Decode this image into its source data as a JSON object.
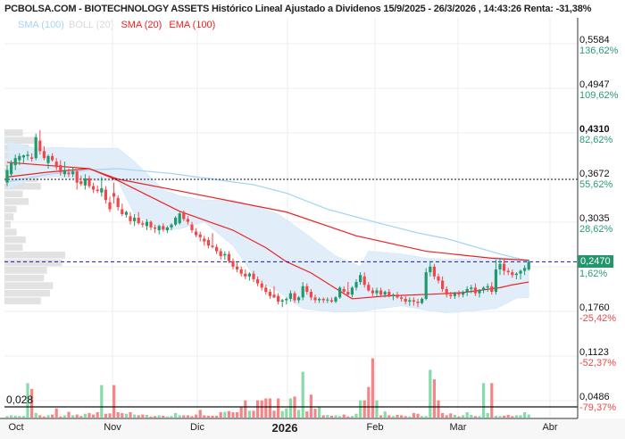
{
  "title": "PCBOLSA.COM - BIOTECHNOLOGY ASSETS Histórico Lineal Ajustado a Dividenos 15/9/2025 - 26/3/2026 , 14:43:26 Renta: -31,38%",
  "legend": [
    {
      "label": "SMA (100)",
      "color": "#9fd3f5"
    },
    {
      "label": "BOLL (20)",
      "color": "#d8d8d8"
    },
    {
      "label": "SMA (20)",
      "color": "#ee2020"
    },
    {
      "label": "EMA (100)",
      "color": "#ee2020"
    }
  ],
  "colors": {
    "up": "#1f9a6c",
    "down": "#f04848",
    "vol_up": "#85dcaa",
    "vol_down": "#f78585",
    "band": "#dcecfa",
    "sma100": "#a6d6f6",
    "red_line": "#ec2222",
    "pct_up": "#2a9d72",
    "pct_down": "#f04848"
  },
  "chart_data": {
    "type": "candlestick",
    "ylim": [
      0.0486,
      0.5584
    ],
    "y_ticks": [
      {
        "price": "0,5584",
        "pct": "136,62%",
        "value": 0.5584,
        "dir": "up"
      },
      {
        "price": "0,4947",
        "pct": "109,62%",
        "value": 0.4947,
        "dir": "up"
      },
      {
        "price": "0,4310",
        "pct": "82,62%",
        "value": 0.431,
        "dir": "up"
      },
      {
        "price": "0,3672",
        "pct": "55,62%",
        "value": 0.3672,
        "dir": "up"
      },
      {
        "price": "0,3035",
        "pct": "28,62%",
        "value": 0.3035,
        "dir": "up"
      },
      {
        "price": "",
        "pct": "1,62%",
        "value": 0.2398,
        "dir": "up"
      },
      {
        "price": "0,1760",
        "pct": "-25,42%",
        "value": 0.176,
        "dir": "down"
      },
      {
        "price": "0,1123",
        "pct": "-52,37%",
        "value": 0.1123,
        "dir": "down"
      },
      {
        "price": "0,0486",
        "pct": "-79,37%",
        "value": 0.0486,
        "dir": "down"
      }
    ],
    "last_price": {
      "label": "0,2470",
      "value": 0.247
    },
    "reference_line": 0.3647,
    "x_labels": [
      "Oct",
      "Nov",
      "Dic",
      "2026",
      "Feb",
      "Mar",
      "Abr"
    ],
    "volume_line": {
      "label": "0,028",
      "value": 0.028
    },
    "candles": [
      [
        0.36,
        0.385,
        0.355,
        0.378
      ],
      [
        0.372,
        0.392,
        0.368,
        0.388
      ],
      [
        0.385,
        0.4,
        0.378,
        0.395
      ],
      [
        0.392,
        0.402,
        0.385,
        0.398
      ],
      [
        0.396,
        0.4,
        0.388,
        0.399
      ],
      [
        0.398,
        0.405,
        0.392,
        0.4
      ],
      [
        0.396,
        0.402,
        0.39,
        0.394
      ],
      [
        0.395,
        0.43,
        0.392,
        0.425
      ],
      [
        0.42,
        0.435,
        0.4,
        0.405
      ],
      [
        0.405,
        0.412,
        0.392,
        0.395
      ],
      [
        0.388,
        0.4,
        0.38,
        0.398
      ],
      [
        0.398,
        0.402,
        0.39,
        0.392
      ],
      [
        0.39,
        0.395,
        0.378,
        0.382
      ],
      [
        0.385,
        0.392,
        0.37,
        0.375
      ],
      [
        0.372,
        0.39,
        0.368,
        0.378
      ],
      [
        0.374,
        0.38,
        0.368,
        0.372
      ],
      [
        0.372,
        0.382,
        0.368,
        0.376
      ],
      [
        0.376,
        0.378,
        0.35,
        0.36
      ],
      [
        0.362,
        0.37,
        0.355,
        0.358
      ],
      [
        0.356,
        0.372,
        0.35,
        0.366
      ],
      [
        0.366,
        0.37,
        0.352,
        0.355
      ],
      [
        0.355,
        0.36,
        0.345,
        0.35
      ],
      [
        0.35,
        0.356,
        0.345,
        0.348
      ],
      [
        0.346,
        0.368,
        0.34,
        0.352
      ],
      [
        0.35,
        0.355,
        0.33,
        0.335
      ],
      [
        0.332,
        0.34,
        0.318,
        0.322
      ],
      [
        0.345,
        0.36,
        0.33,
        0.34
      ],
      [
        0.338,
        0.342,
        0.32,
        0.325
      ],
      [
        0.322,
        0.33,
        0.312,
        0.315
      ],
      [
        0.314,
        0.32,
        0.31,
        0.318
      ],
      [
        0.312,
        0.318,
        0.3,
        0.305
      ],
      [
        0.305,
        0.315,
        0.298,
        0.31
      ],
      [
        0.31,
        0.318,
        0.3,
        0.302
      ],
      [
        0.302,
        0.306,
        0.296,
        0.3
      ],
      [
        0.298,
        0.308,
        0.292,
        0.304
      ],
      [
        0.304,
        0.306,
        0.292,
        0.296
      ],
      [
        0.296,
        0.3,
        0.288,
        0.294
      ],
      [
        0.292,
        0.3,
        0.286,
        0.298
      ],
      [
        0.298,
        0.302,
        0.29,
        0.293
      ],
      [
        0.292,
        0.298,
        0.288,
        0.296
      ],
      [
        0.296,
        0.302,
        0.292,
        0.3
      ],
      [
        0.3,
        0.312,
        0.298,
        0.31
      ],
      [
        0.302,
        0.318,
        0.3,
        0.316
      ],
      [
        0.318,
        0.32,
        0.305,
        0.308
      ],
      [
        0.308,
        0.312,
        0.3,
        0.304
      ],
      [
        0.3,
        0.304,
        0.288,
        0.292
      ],
      [
        0.29,
        0.295,
        0.282,
        0.285
      ],
      [
        0.286,
        0.29,
        0.276,
        0.282
      ],
      [
        0.28,
        0.284,
        0.27,
        0.276
      ],
      [
        0.278,
        0.282,
        0.266,
        0.27
      ],
      [
        0.27,
        0.288,
        0.266,
        0.268
      ],
      [
        0.268,
        0.272,
        0.258,
        0.262
      ],
      [
        0.262,
        0.266,
        0.25,
        0.255
      ],
      [
        0.256,
        0.262,
        0.25,
        0.258
      ],
      [
        0.258,
        0.262,
        0.245,
        0.248
      ],
      [
        0.248,
        0.252,
        0.236,
        0.24
      ],
      [
        0.24,
        0.246,
        0.232,
        0.236
      ],
      [
        0.236,
        0.24,
        0.226,
        0.23
      ],
      [
        0.23,
        0.236,
        0.222,
        0.226
      ],
      [
        0.226,
        0.232,
        0.22,
        0.23
      ],
      [
        0.23,
        0.234,
        0.218,
        0.222
      ],
      [
        0.222,
        0.226,
        0.212,
        0.216
      ],
      [
        0.216,
        0.22,
        0.206,
        0.21
      ],
      [
        0.21,
        0.214,
        0.2,
        0.204
      ],
      [
        0.204,
        0.208,
        0.194,
        0.198
      ],
      [
        0.2,
        0.212,
        0.195,
        0.196
      ],
      [
        0.198,
        0.202,
        0.186,
        0.19
      ],
      [
        0.19,
        0.194,
        0.182,
        0.192
      ],
      [
        0.192,
        0.196,
        0.186,
        0.194
      ],
      [
        0.194,
        0.206,
        0.19,
        0.202
      ],
      [
        0.202,
        0.205,
        0.188,
        0.192
      ],
      [
        0.192,
        0.198,
        0.188,
        0.196
      ],
      [
        0.196,
        0.218,
        0.192,
        0.212
      ],
      [
        0.212,
        0.216,
        0.2,
        0.204
      ],
      [
        0.204,
        0.208,
        0.192,
        0.196
      ],
      [
        0.196,
        0.2,
        0.188,
        0.192
      ],
      [
        0.192,
        0.196,
        0.188,
        0.194
      ],
      [
        0.194,
        0.196,
        0.188,
        0.192
      ],
      [
        0.192,
        0.196,
        0.188,
        0.193
      ],
      [
        0.192,
        0.196,
        0.188,
        0.19
      ],
      [
        0.19,
        0.198,
        0.188,
        0.196
      ],
      [
        0.196,
        0.212,
        0.194,
        0.21
      ],
      [
        0.208,
        0.212,
        0.2,
        0.204
      ],
      [
        0.204,
        0.218,
        0.198,
        0.2
      ],
      [
        0.2,
        0.212,
        0.196,
        0.21
      ],
      [
        0.21,
        0.222,
        0.206,
        0.218
      ],
      [
        0.218,
        0.232,
        0.214,
        0.228
      ],
      [
        0.226,
        0.232,
        0.21,
        0.214
      ],
      [
        0.214,
        0.218,
        0.204,
        0.206
      ],
      [
        0.206,
        0.21,
        0.198,
        0.202
      ],
      [
        0.202,
        0.21,
        0.198,
        0.206
      ],
      [
        0.206,
        0.21,
        0.198,
        0.2
      ],
      [
        0.2,
        0.206,
        0.196,
        0.204
      ],
      [
        0.204,
        0.208,
        0.196,
        0.198
      ],
      [
        0.198,
        0.202,
        0.192,
        0.2
      ],
      [
        0.2,
        0.204,
        0.194,
        0.196
      ],
      [
        0.196,
        0.2,
        0.19,
        0.194
      ],
      [
        0.194,
        0.198,
        0.186,
        0.19
      ],
      [
        0.19,
        0.196,
        0.184,
        0.192
      ],
      [
        0.192,
        0.196,
        0.184,
        0.19
      ],
      [
        0.19,
        0.194,
        0.182,
        0.188
      ],
      [
        0.188,
        0.196,
        0.186,
        0.194
      ],
      [
        0.194,
        0.238,
        0.192,
        0.232
      ],
      [
        0.232,
        0.248,
        0.226,
        0.24
      ],
      [
        0.24,
        0.244,
        0.222,
        0.226
      ],
      [
        0.226,
        0.23,
        0.216,
        0.22
      ],
      [
        0.22,
        0.226,
        0.204,
        0.208
      ],
      [
        0.208,
        0.212,
        0.196,
        0.2
      ],
      [
        0.2,
        0.204,
        0.194,
        0.198
      ],
      [
        0.198,
        0.204,
        0.194,
        0.202
      ],
      [
        0.202,
        0.206,
        0.196,
        0.2
      ],
      [
        0.2,
        0.206,
        0.196,
        0.204
      ],
      [
        0.204,
        0.212,
        0.198,
        0.208
      ],
      [
        0.208,
        0.214,
        0.202,
        0.21
      ],
      [
        0.21,
        0.216,
        0.198,
        0.202
      ],
      [
        0.202,
        0.208,
        0.196,
        0.206
      ],
      [
        0.206,
        0.212,
        0.202,
        0.21
      ],
      [
        0.21,
        0.216,
        0.204,
        0.212
      ],
      [
        0.212,
        0.218,
        0.2,
        0.204
      ],
      [
        0.204,
        0.25,
        0.2,
        0.236
      ],
      [
        0.236,
        0.252,
        0.228,
        0.244
      ],
      [
        0.244,
        0.252,
        0.228,
        0.234
      ],
      [
        0.234,
        0.238,
        0.228,
        0.232
      ],
      [
        0.232,
        0.236,
        0.224,
        0.228
      ],
      [
        0.228,
        0.232,
        0.222,
        0.23
      ],
      [
        0.23,
        0.236,
        0.222,
        0.234
      ],
      [
        0.234,
        0.242,
        0.228,
        0.238
      ],
      [
        0.236,
        0.25,
        0.234,
        0.247
      ]
    ],
    "volume": [
      0.004,
      0.006,
      0.005,
      0.004,
      0.004,
      0.09,
      0.075,
      0.012,
      0.006,
      0.003,
      0.006,
      0.008,
      0.024,
      0.003,
      0.006,
      0.015,
      0.006,
      0.008,
      0.004,
      0.01,
      0.012,
      0.008,
      0.014,
      0.085,
      0.01,
      0.011,
      0.085,
      0.014,
      0.012,
      0.01,
      0.014,
      0.008,
      0.006,
      0.008,
      0.007,
      0.003,
      0.004,
      0.006,
      0.005,
      0.003,
      0.004,
      0.012,
      0.006,
      0.006,
      0.006,
      0.004,
      0.008,
      0.02,
      0.006,
      0.005,
      0.005,
      0.005,
      0.014,
      0.015,
      0.017,
      0.014,
      0.014,
      0.027,
      0.045,
      0.018,
      0.018,
      0.045,
      0.045,
      0.05,
      0.05,
      0.018,
      0.05,
      0.017,
      0.024,
      0.05,
      0.055,
      0.02,
      0.12,
      0.016,
      0.06,
      0.023,
      0.028,
      0.006,
      0.007,
      0.005,
      0.006,
      0.004,
      0.008,
      0.003,
      0.004,
      0.01,
      0.045,
      0.045,
      0.08,
      0.155,
      0.045,
      0.006,
      0.016,
      0.006,
      0.004,
      0.007,
      0.006,
      0.004,
      0.003,
      0.012,
      0.01,
      0.004,
      0.004,
      0.125,
      0.1,
      0.045,
      0.012,
      0.006,
      0.011,
      0.007,
      0.003,
      0.006,
      0.014,
      0.007,
      0.004,
      0.004,
      0.09,
      0.012,
      0.09,
      0.005,
      0.004,
      0.005,
      0.007,
      0.004,
      0.006,
      0.006,
      0.014,
      0.008
    ],
    "sma100": [
      [
        0,
        0.361
      ],
      [
        10,
        0.372
      ],
      [
        20,
        0.378
      ],
      [
        27,
        0.38
      ],
      [
        40,
        0.373
      ],
      [
        60,
        0.357
      ],
      [
        68,
        0.345
      ],
      [
        78,
        0.322
      ],
      [
        90,
        0.303
      ],
      [
        100,
        0.288
      ],
      [
        107,
        0.28
      ],
      [
        120,
        0.258
      ],
      [
        127,
        0.248
      ]
    ],
    "ema100": [
      [
        0,
        0.368
      ],
      [
        10,
        0.375
      ],
      [
        20,
        0.38
      ],
      [
        27,
        0.365
      ],
      [
        42,
        0.348
      ],
      [
        68,
        0.318
      ],
      [
        85,
        0.284
      ],
      [
        102,
        0.262
      ],
      [
        118,
        0.252
      ],
      [
        127,
        0.249
      ]
    ],
    "sma20": [
      [
        0,
        0.389
      ],
      [
        11,
        0.384
      ],
      [
        20,
        0.38
      ],
      [
        27,
        0.363
      ],
      [
        42,
        0.319
      ],
      [
        55,
        0.292
      ],
      [
        63,
        0.267
      ],
      [
        68,
        0.247
      ],
      [
        74,
        0.231
      ],
      [
        84,
        0.194
      ],
      [
        92,
        0.198
      ],
      [
        105,
        0.201
      ],
      [
        111,
        0.203
      ],
      [
        120,
        0.21
      ],
      [
        123,
        0.214
      ],
      [
        127,
        0.218
      ]
    ],
    "boll": [
      [
        0,
        0.42,
        0.35
      ],
      [
        7,
        0.409,
        0.367
      ],
      [
        12,
        0.41,
        0.369
      ],
      [
        20,
        0.409,
        0.363
      ],
      [
        27,
        0.409,
        0.362
      ],
      [
        31,
        0.39,
        0.315
      ],
      [
        38,
        0.35,
        0.292
      ],
      [
        42,
        0.341,
        0.294
      ],
      [
        48,
        0.335,
        0.304
      ],
      [
        55,
        0.335,
        0.27
      ],
      [
        61,
        0.325,
        0.22
      ],
      [
        66,
        0.315,
        0.205
      ],
      [
        72,
        0.29,
        0.18
      ],
      [
        80,
        0.255,
        0.175
      ],
      [
        86,
        0.24,
        0.176
      ],
      [
        88,
        0.262,
        0.178
      ],
      [
        96,
        0.258,
        0.184
      ],
      [
        102,
        0.252,
        0.178
      ],
      [
        107,
        0.25,
        0.174
      ],
      [
        119,
        0.253,
        0.18
      ],
      [
        124,
        0.252,
        0.195
      ],
      [
        127,
        0.25,
        0.196
      ]
    ],
    "volume_profile": [
      0.3,
      0.5,
      0.4,
      0.25,
      0.2,
      0.3,
      0.55,
      0.6,
      0.3,
      0.4,
      0.2,
      0.15,
      0.1,
      0.2,
      0.35,
      0.3,
      1.0,
      0.95,
      0.7,
      0.65,
      0.8,
      0.75,
      0.6
    ]
  }
}
